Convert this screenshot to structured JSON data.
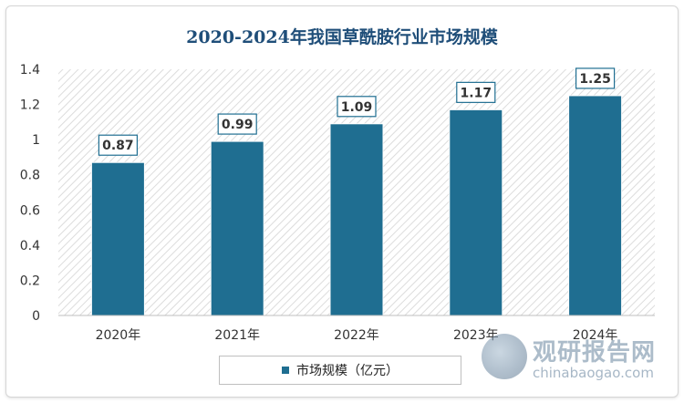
{
  "chart_data": {
    "type": "bar",
    "title": "2020-2024年我国草酰胺行业市场规模",
    "categories": [
      "2020年",
      "2021年",
      "2022年",
      "2023年",
      "2024年"
    ],
    "series": [
      {
        "name": "市场规模（亿元）",
        "values": [
          0.87,
          0.99,
          1.09,
          1.17,
          1.25
        ]
      }
    ],
    "data_labels": [
      "0.87",
      "0.99",
      "1.09",
      "1.17",
      "1.25"
    ],
    "ylim": [
      0,
      1.4
    ],
    "yticks": [
      0,
      0.2,
      0.4,
      0.6,
      0.8,
      1,
      1.2,
      1.4
    ],
    "ytick_labels": [
      "0",
      "0.2",
      "0.4",
      "0.6",
      "0.8",
      "1",
      "1.2",
      "1.4"
    ],
    "legend_position": "bottom",
    "bar_color": "#1f6e91",
    "grid": false
  },
  "watermark": {
    "name_cn": "观研报告网",
    "name_en": "chinabaogao.com"
  }
}
